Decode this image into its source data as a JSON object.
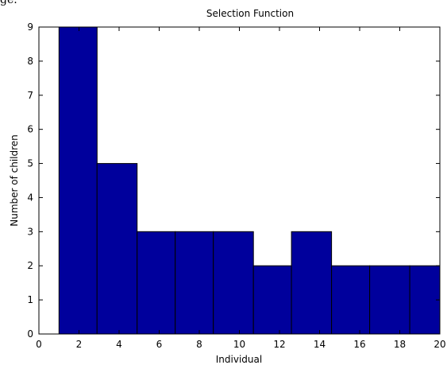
{
  "top_fragment": "ge.",
  "chart_data": {
    "type": "bar",
    "title": "Selection Function",
    "xlabel": "Individual",
    "ylabel": "Number of children",
    "xlim": [
      0,
      20
    ],
    "ylim": [
      0,
      9
    ],
    "xticks": [
      "0",
      "2",
      "4",
      "6",
      "8",
      "10",
      "12",
      "14",
      "16",
      "18",
      "20"
    ],
    "yticks": [
      "0",
      "1",
      "2",
      "3",
      "4",
      "5",
      "6",
      "7",
      "8",
      "9"
    ],
    "bins": [
      {
        "x0": 1.0,
        "x1": 2.9,
        "value": 9
      },
      {
        "x0": 2.9,
        "x1": 4.9,
        "value": 5
      },
      {
        "x0": 4.9,
        "x1": 6.8,
        "value": 3
      },
      {
        "x0": 6.8,
        "x1": 8.7,
        "value": 3
      },
      {
        "x0": 8.7,
        "x1": 10.7,
        "value": 3
      },
      {
        "x0": 10.7,
        "x1": 12.6,
        "value": 2
      },
      {
        "x0": 12.6,
        "x1": 14.6,
        "value": 3
      },
      {
        "x0": 14.6,
        "x1": 16.5,
        "value": 2
      },
      {
        "x0": 16.5,
        "x1": 18.5,
        "value": 2
      },
      {
        "x0": 18.5,
        "x1": 20.0,
        "value": 2
      }
    ],
    "bar_color": "#00009c",
    "edge_color": "#000000",
    "grid": false
  }
}
